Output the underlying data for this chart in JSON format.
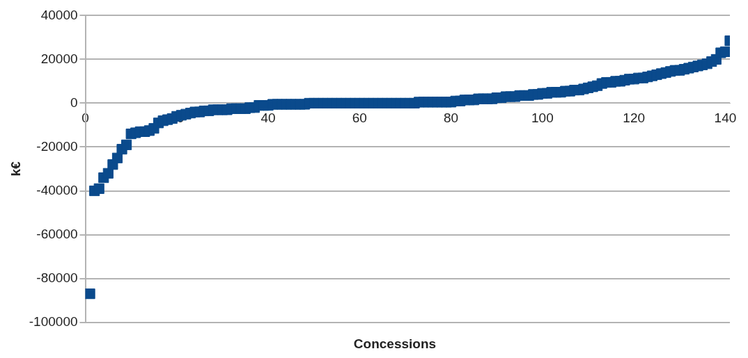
{
  "chart_data": {
    "type": "scatter",
    "xlabel": "Concessions",
    "ylabel": "k€",
    "x": [
      1,
      2,
      3,
      4,
      5,
      6,
      7,
      8,
      9,
      10,
      11,
      12,
      13,
      14,
      15,
      16,
      17,
      18,
      19,
      20,
      21,
      22,
      23,
      24,
      25,
      26,
      27,
      28,
      29,
      30,
      31,
      32,
      33,
      34,
      35,
      36,
      37,
      38,
      39,
      40,
      41,
      42,
      43,
      44,
      45,
      46,
      47,
      48,
      49,
      50,
      51,
      52,
      53,
      54,
      55,
      56,
      57,
      58,
      59,
      60,
      61,
      62,
      63,
      64,
      65,
      66,
      67,
      68,
      69,
      70,
      71,
      72,
      73,
      74,
      75,
      76,
      77,
      78,
      79,
      80,
      81,
      82,
      83,
      84,
      85,
      86,
      87,
      88,
      89,
      90,
      91,
      92,
      93,
      94,
      95,
      96,
      97,
      98,
      99,
      100,
      101,
      102,
      103,
      104,
      105,
      106,
      107,
      108,
      109,
      110,
      111,
      112,
      113,
      114,
      115,
      116,
      117,
      118,
      119,
      120,
      121,
      122,
      123,
      124,
      125,
      126,
      127,
      128,
      129,
      130,
      131,
      132,
      133,
      134,
      135,
      136,
      137,
      138,
      139,
      140,
      141
    ],
    "series": [
      {
        "color": "#0a4a8c",
        "values": [
          -87000,
          -40000,
          -39000,
          -34000,
          -32000,
          -28000,
          -25000,
          -21000,
          -19000,
          -14000,
          -13500,
          -13000,
          -13000,
          -12500,
          -11500,
          -9000,
          -8000,
          -7500,
          -7000,
          -6000,
          -5500,
          -5000,
          -4500,
          -4000,
          -4000,
          -3500,
          -3500,
          -3000,
          -3000,
          -3000,
          -3000,
          -2500,
          -2500,
          -2500,
          -2500,
          -2000,
          -2000,
          -1000,
          -1000,
          -1000,
          -500,
          -500,
          -500,
          -500,
          -500,
          -500,
          -500,
          -500,
          0,
          0,
          0,
          0,
          0,
          0,
          0,
          0,
          0,
          0,
          0,
          0,
          0,
          0,
          0,
          0,
          0,
          0,
          0,
          0,
          0,
          0,
          0,
          0,
          500,
          500,
          500,
          500,
          500,
          500,
          500,
          500,
          1000,
          1000,
          1500,
          1500,
          1500,
          2000,
          2000,
          2000,
          2000,
          2500,
          2500,
          3000,
          3000,
          3000,
          3500,
          3500,
          3500,
          4000,
          4000,
          4500,
          4500,
          5000,
          5000,
          5000,
          5500,
          5500,
          6000,
          6000,
          6500,
          7000,
          7500,
          8000,
          9000,
          9500,
          9500,
          10000,
          10000,
          10500,
          11000,
          11000,
          11500,
          11500,
          12000,
          12500,
          13000,
          13500,
          14000,
          14500,
          15000,
          15000,
          15500,
          16000,
          16500,
          17000,
          17500,
          18000,
          19000,
          20000,
          23000,
          23500,
          28500
        ]
      }
    ],
    "xlim": [
      0,
      141
    ],
    "xticks": [
      0,
      20,
      40,
      60,
      80,
      100,
      120,
      140
    ],
    "ylim": [
      -100000,
      40000
    ],
    "yticks": [
      -100000,
      -80000,
      -60000,
      -40000,
      -20000,
      0,
      20000,
      40000
    ],
    "grid": "y",
    "legend": false,
    "marker": "square"
  }
}
